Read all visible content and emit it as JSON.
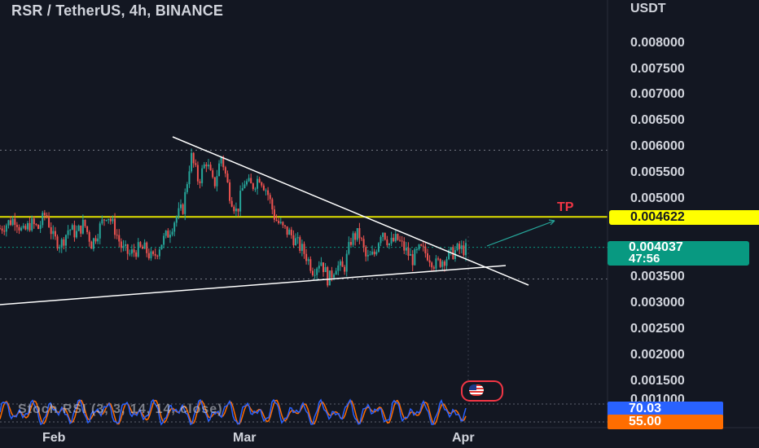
{
  "header": {
    "symbol": "RSR / TetherUS, 4h, BINANCE",
    "unit": "USDT"
  },
  "colors": {
    "background": "#131722",
    "up": "#26a69a",
    "down": "#ef5350",
    "level": "#e0e000",
    "accent": "#089981",
    "k": "#2962ff",
    "d": "#ff6d00"
  },
  "chart_data": {
    "type": "candlestick",
    "title": "RSR / TetherUS, 4h, BINANCE",
    "ylabel": "USDT",
    "y_ticks": [
      "0.008000",
      "0.007500",
      "0.007000",
      "0.006500",
      "0.006000",
      "0.005500",
      "0.005000",
      "0.003500",
      "0.003000",
      "0.002500",
      "0.002000",
      "0.001500",
      "0.001000"
    ],
    "y_tick_values": [
      0.008,
      0.0075,
      0.007,
      0.0065,
      0.006,
      0.0055,
      0.005,
      0.0035,
      0.003,
      0.0025,
      0.002,
      0.0015,
      0.001
    ],
    "x_ticks": [
      "Feb",
      "Mar",
      "Apr"
    ],
    "price_path": [
      0.0044,
      0.0045,
      0.0046,
      0.0043,
      0.0045,
      0.0044,
      0.0047,
      0.0042,
      0.0041,
      0.0044,
      0.0043,
      0.0045,
      0.0041,
      0.0044,
      0.0047,
      0.0044,
      0.004,
      0.0039,
      0.004,
      0.004,
      0.0038,
      0.0041,
      0.0043,
      0.0046,
      0.0048,
      0.0058,
      0.0053,
      0.0057,
      0.0052,
      0.0058,
      0.0051,
      0.0047,
      0.0053,
      0.0052,
      0.0054,
      0.0051,
      0.0046,
      0.0044,
      0.0043,
      0.0041,
      0.0039,
      0.0036,
      0.0038,
      0.0034,
      0.0037,
      0.0036,
      0.0042,
      0.0043,
      0.0038,
      0.0039,
      0.0044,
      0.0041,
      0.0042,
      0.004,
      0.0038,
      0.004,
      0.0039,
      0.0037,
      0.0038,
      0.0039,
      0.004,
      0.004
    ],
    "price_x_start": "Jan 24",
    "price_x_end": "Mar 31",
    "levels": {
      "tp_line": 0.004622,
      "current_price": 0.004037,
      "dotted_low": 0.00343,
      "dotted_high": 0.0059
    },
    "trendlines": [
      {
        "name": "descending",
        "from": [
          0.0062,
          "Feb 22"
        ],
        "to": [
          0.00333,
          "Apr 6"
        ]
      },
      {
        "name": "ascending",
        "from": [
          0.00305,
          "Jan 17"
        ],
        "to": [
          0.00373,
          "Apr 4"
        ]
      }
    ],
    "projection": {
      "from": 0.004,
      "to": 0.00465,
      "label": "TP"
    },
    "last_price_label": "0.004037",
    "countdown": "47:56",
    "tp_price_label": "0.004622",
    "oscillator": {
      "label": "Stoch RSI (3, 3, 14, 14, close)",
      "k_value": "70.03",
      "d_value": "55.00",
      "k_label": "70.03",
      "d_label": "55.00"
    }
  }
}
